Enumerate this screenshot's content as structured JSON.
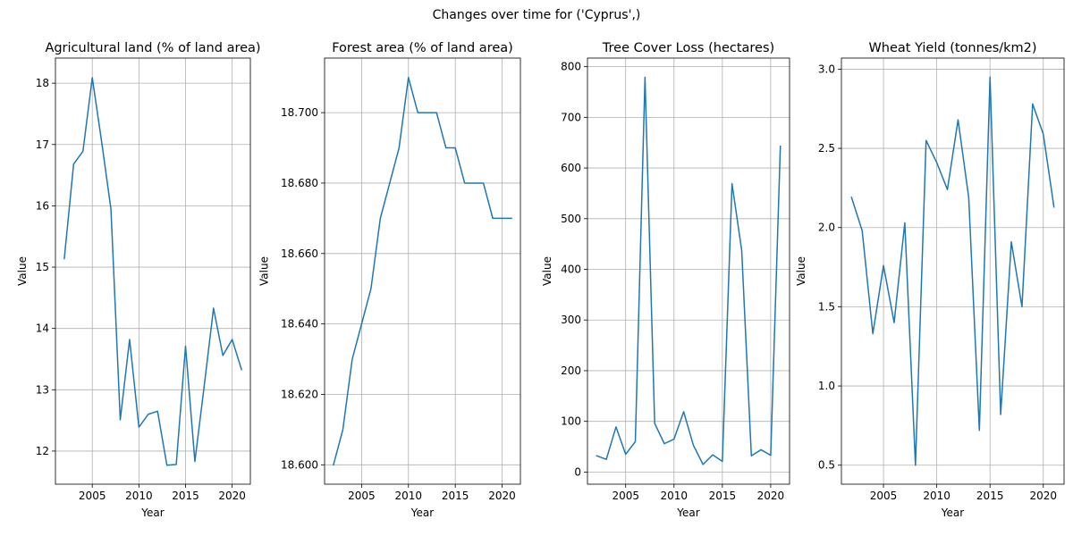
{
  "figure": {
    "title": "Changes over time for ('Cyprus',)"
  },
  "chart_data": [
    {
      "type": "line",
      "title": "Agricultural land (% of land area)",
      "xlabel": "Year",
      "ylabel": "Value",
      "xlim": [
        2001.05,
        2021.95
      ],
      "ylim": [
        11.46,
        18.41
      ],
      "xticks": [
        2005,
        2010,
        2015,
        2020
      ],
      "yticks": [
        12,
        13,
        14,
        15,
        16,
        17,
        18
      ],
      "ytick_labels": [
        "12",
        "13",
        "14",
        "15",
        "16",
        "17",
        "18"
      ],
      "grid": true,
      "color": "#1f77b4",
      "x": [
        2002,
        2003,
        2004,
        2005,
        2006,
        2007,
        2008,
        2009,
        2010,
        2011,
        2012,
        2013,
        2014,
        2015,
        2016,
        2017,
        2018,
        2019,
        2020,
        2021
      ],
      "values": [
        15.14,
        16.68,
        16.89,
        18.09,
        17.05,
        15.95,
        12.51,
        13.82,
        12.39,
        12.6,
        12.65,
        11.77,
        11.78,
        13.71,
        11.83,
        13.06,
        14.33,
        13.56,
        13.82,
        13.33
      ]
    },
    {
      "type": "line",
      "title": "Forest area (% of land area)",
      "xlabel": "Year",
      "ylabel": "Value",
      "xlim": [
        2001.05,
        2021.95
      ],
      "ylim": [
        18.5945,
        18.7155
      ],
      "xticks": [
        2005,
        2010,
        2015,
        2020
      ],
      "yticks": [
        18.6,
        18.62,
        18.64,
        18.66,
        18.68,
        18.7
      ],
      "ytick_labels": [
        "18.600",
        "18.620",
        "18.640",
        "18.660",
        "18.680",
        "18.700"
      ],
      "grid": true,
      "color": "#1f77b4",
      "x": [
        2002,
        2003,
        2004,
        2005,
        2006,
        2007,
        2008,
        2009,
        2010,
        2011,
        2012,
        2013,
        2014,
        2015,
        2016,
        2017,
        2018,
        2019,
        2020,
        2021
      ],
      "values": [
        18.6,
        18.61,
        18.63,
        18.64,
        18.65,
        18.67,
        18.68,
        18.69,
        18.71,
        18.7,
        18.7,
        18.7,
        18.69,
        18.69,
        18.68,
        18.68,
        18.68,
        18.67,
        18.67,
        18.67
      ]
    },
    {
      "type": "line",
      "title": "Tree Cover Loss (hectares)",
      "xlabel": "Year",
      "ylabel": "Value",
      "xlim": [
        2001.05,
        2021.95
      ],
      "ylim": [
        -24,
        817
      ],
      "xticks": [
        2005,
        2010,
        2015,
        2020
      ],
      "yticks": [
        0,
        100,
        200,
        300,
        400,
        500,
        600,
        700,
        800
      ],
      "ytick_labels": [
        "0",
        "100",
        "200",
        "300",
        "400",
        "500",
        "600",
        "700",
        "800"
      ],
      "grid": true,
      "color": "#1f77b4",
      "x": [
        2002,
        2003,
        2004,
        2005,
        2006,
        2007,
        2008,
        2009,
        2010,
        2011,
        2012,
        2013,
        2014,
        2015,
        2016,
        2017,
        2018,
        2019,
        2020,
        2021
      ],
      "values": [
        32,
        25,
        89,
        35,
        60,
        779,
        96,
        56,
        65,
        119,
        53,
        15,
        34,
        21,
        569,
        438,
        32,
        44,
        33,
        643
      ]
    },
    {
      "type": "line",
      "title": "Wheat Yield (tonnes/km2)",
      "xlabel": "Year",
      "ylabel": "Value",
      "xlim": [
        2001.05,
        2021.95
      ],
      "ylim": [
        0.38,
        3.07
      ],
      "xticks": [
        2005,
        2010,
        2015,
        2020
      ],
      "yticks": [
        0.5,
        1.0,
        1.5,
        2.0,
        2.5,
        3.0
      ],
      "ytick_labels": [
        "0.5",
        "1.0",
        "1.5",
        "2.0",
        "2.5",
        "3.0"
      ],
      "grid": true,
      "color": "#1f77b4",
      "x": [
        2002,
        2003,
        2004,
        2005,
        2006,
        2007,
        2008,
        2009,
        2010,
        2011,
        2012,
        2013,
        2014,
        2015,
        2016,
        2017,
        2018,
        2019,
        2020,
        2021
      ],
      "values": [
        2.19,
        1.98,
        1.33,
        1.76,
        1.4,
        2.03,
        0.5,
        2.55,
        2.41,
        2.24,
        2.68,
        2.19,
        0.72,
        2.95,
        0.82,
        1.91,
        1.5,
        2.78,
        2.59,
        2.13
      ]
    }
  ]
}
